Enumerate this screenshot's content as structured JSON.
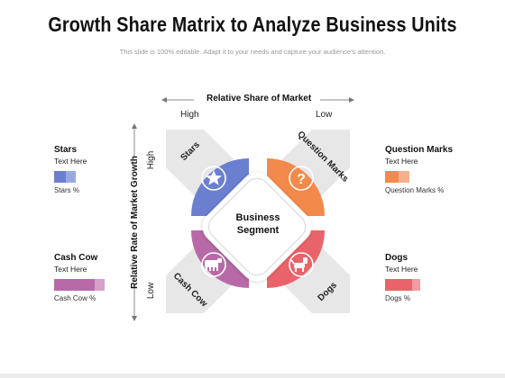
{
  "title": "Growth Share Matrix to Analyze Business Units",
  "subtitle": "This slide is 100% editable. Adapt it to your needs and capture your audience’s attention.",
  "axes": {
    "x_label": "Relative Share of Market",
    "x_high": "High",
    "x_low": "Low",
    "y_label": "Relative Rate of Market Growth",
    "y_high": "High",
    "y_low": "Low"
  },
  "center": {
    "line1": "Business",
    "line2": "Segment"
  },
  "quadrants": {
    "stars": {
      "label": "Stars",
      "color": "#6b7fd0",
      "icon": "star-icon"
    },
    "question_marks": {
      "label": "Question Marks",
      "color": "#f28a4b",
      "icon": "question-mark-icon"
    },
    "cash_cow": {
      "label": "Cash Cow",
      "color": "#b86aa8",
      "icon": "cow-icon"
    },
    "dogs": {
      "label": "Dogs",
      "color": "#e8646a",
      "icon": "dog-icon"
    }
  },
  "legend": {
    "stars": {
      "title": "Stars",
      "text": "Text Here",
      "pct": "Stars %"
    },
    "question_marks": {
      "title": "Question Marks",
      "text": "Text Here",
      "pct": "Question Marks %"
    },
    "cash_cow": {
      "title": "Cash Cow",
      "text": "Text Here",
      "pct": "Cash Cow %"
    },
    "dogs": {
      "title": "Dogs",
      "text": "Text Here",
      "pct": "Dogs %"
    }
  }
}
